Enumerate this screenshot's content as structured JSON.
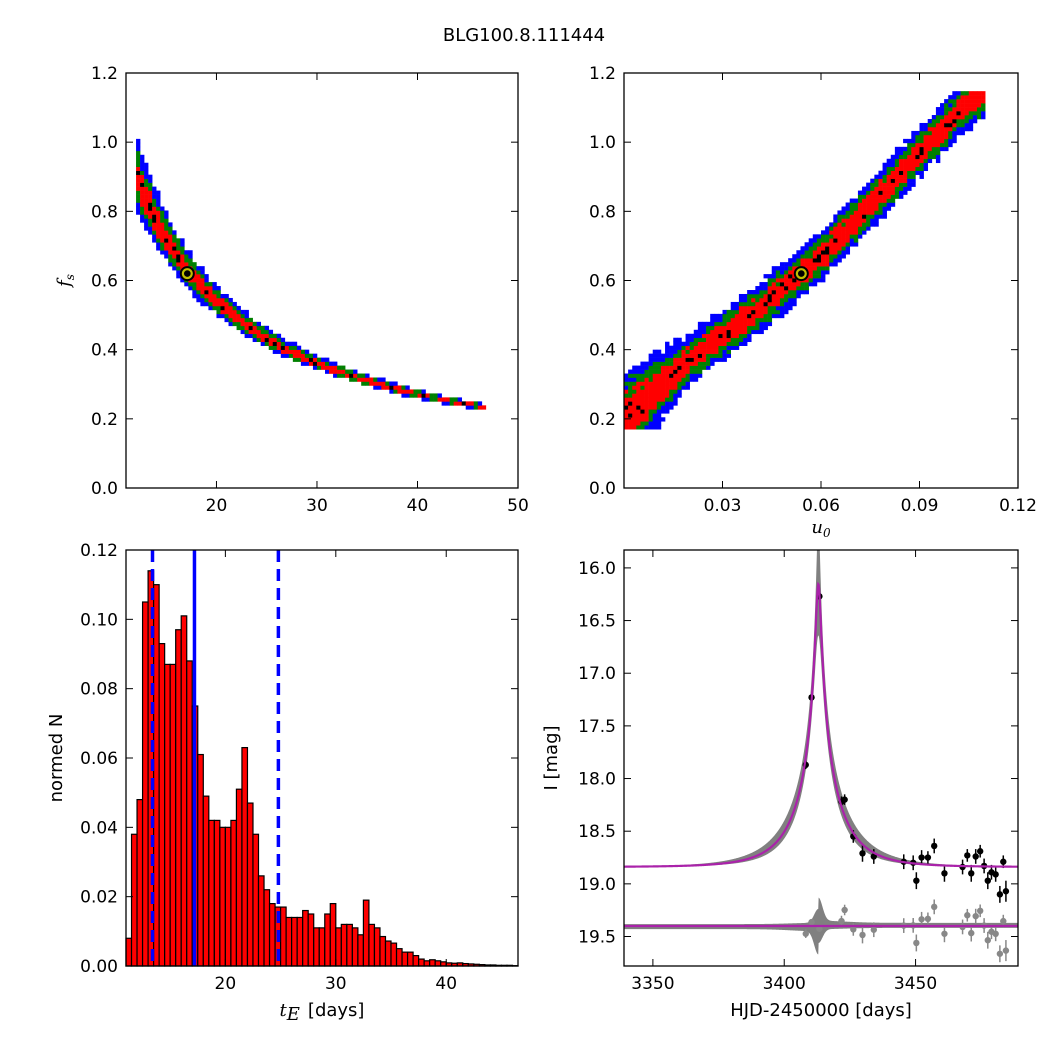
{
  "figure_title": "BLG100.8.111444",
  "colors": {
    "blue": "#0000ff",
    "green": "#008000",
    "red": "#ff0000",
    "black": "#000000",
    "marker_face": "#bfbf00",
    "magenta": "#aa22aa",
    "band_gray": "#808080",
    "resid_gray": "#888888"
  },
  "chart_data": [
    {
      "name": "fs-vs-tE-density",
      "type": "heatmap",
      "xlim": [
        11,
        50
      ],
      "ylim": [
        0.0,
        1.2
      ],
      "xticks": [
        20,
        30,
        40,
        50
      ],
      "yticks": [
        0.0,
        0.2,
        0.4,
        0.6,
        0.8,
        1.0,
        1.2
      ],
      "xlabel": "",
      "ylabel": "f_s",
      "ylabel_main": "f",
      "ylabel_sub": "s",
      "band_curve": {
        "amplitude": 10.6,
        "exponent": 1.0
      },
      "band_x_range": [
        12,
        46.5
      ],
      "levels": [
        {
          "color": "blue",
          "half_width_days": 1.6
        },
        {
          "color": "green",
          "half_width_days": 1.15
        },
        {
          "color": "red",
          "half_width_days": 0.7
        },
        {
          "color": "black",
          "half_width_days": 0.2
        }
      ],
      "best_fit": {
        "x": 17.1,
        "y": 0.62
      }
    },
    {
      "name": "fs-vs-u0-density",
      "type": "heatmap",
      "xlim": [
        0.0,
        0.12
      ],
      "ylim": [
        0.0,
        1.2
      ],
      "xticks": [
        0.03,
        0.06,
        0.09,
        0.12
      ],
      "xtick_labels": [
        "0.03",
        "0.06",
        "0.09",
        "0.12"
      ],
      "yticks": [
        0.0,
        0.2,
        0.4,
        0.6,
        0.8,
        1.0,
        1.2
      ],
      "xlabel": "u_0",
      "xlabel_main": "u",
      "xlabel_sub": "0",
      "ylabel": "",
      "band_points": [
        [
          0.0,
          0.2
        ],
        [
          0.01,
          0.285
        ],
        [
          0.02,
          0.37
        ],
        [
          0.03,
          0.44
        ],
        [
          0.04,
          0.51
        ],
        [
          0.05,
          0.59
        ],
        [
          0.06,
          0.67
        ],
        [
          0.07,
          0.77
        ],
        [
          0.08,
          0.87
        ],
        [
          0.09,
          0.97
        ],
        [
          0.1,
          1.07
        ],
        [
          0.108,
          1.13
        ]
      ],
      "levels": [
        {
          "color": "blue",
          "half_width": 0.072
        },
        {
          "color": "green",
          "half_width": 0.052
        },
        {
          "color": "red",
          "half_width": 0.032
        },
        {
          "color": "black",
          "half_width": 0.008
        }
      ],
      "best_fit": {
        "x": 0.054,
        "y": 0.62
      }
    },
    {
      "name": "tE-histogram",
      "type": "bar",
      "xlim": [
        11,
        46.5
      ],
      "ylim": [
        0.0,
        0.12
      ],
      "xticks": [
        20,
        30,
        40
      ],
      "yticks": [
        0.0,
        0.02,
        0.04,
        0.06,
        0.08,
        0.1,
        0.12
      ],
      "ytick_labels": [
        "0.00",
        "0.02",
        "0.04",
        "0.06",
        "0.08",
        "0.10",
        "0.12"
      ],
      "xlabel": "t_E [days]",
      "xlabel_main": "t",
      "xlabel_sub": "E",
      "xlabel_rest": "[days]",
      "ylabel": "normed N",
      "bin_start": 11.0,
      "bin_width": 0.5,
      "values": [
        0.008,
        0.038,
        0.048,
        0.105,
        0.114,
        0.11,
        0.093,
        0.087,
        0.087,
        0.097,
        0.101,
        0.088,
        0.075,
        0.061,
        0.049,
        0.042,
        0.042,
        0.04,
        0.04,
        0.042,
        0.051,
        0.063,
        0.047,
        0.038,
        0.026,
        0.022,
        0.018,
        0.017,
        0.017,
        0.014,
        0.014,
        0.014,
        0.016,
        0.015,
        0.011,
        0.011,
        0.015,
        0.018,
        0.011,
        0.012,
        0.012,
        0.011,
        0.009,
        0.019,
        0.012,
        0.011,
        0.0085,
        0.0072,
        0.0066,
        0.005,
        0.004,
        0.004,
        0.003,
        0.002,
        0.0015,
        0.0018,
        0.0015,
        0.0012,
        0.0009,
        0.0008,
        0.0009,
        0.0007,
        0.0006,
        0.0005,
        0.0004,
        0.0003,
        0.0003,
        0.0002,
        0.0002,
        0.0002,
        0.0001
      ],
      "vlines": [
        {
          "x": 13.4,
          "style": "dashed"
        },
        {
          "x": 17.2,
          "style": "solid"
        },
        {
          "x": 24.8,
          "style": "dashed"
        }
      ]
    },
    {
      "name": "light-curve",
      "type": "scatter",
      "xlim": [
        3339,
        3489
      ],
      "ylim": [
        19.78,
        15.83
      ],
      "y_inverted": true,
      "xticks": [
        3350,
        3400,
        3450
      ],
      "yticks": [
        16.0,
        16.5,
        17.0,
        17.5,
        18.0,
        18.5,
        19.0,
        19.5
      ],
      "ytick_labels": [
        "16.0",
        "16.5",
        "17.0",
        "17.5",
        "18.0",
        "18.5",
        "19.0",
        "19.5"
      ],
      "xlabel": "HJD-2450000 [days]",
      "ylabel": "I [mag]",
      "model": {
        "t0": 3413.0,
        "u0": 0.054,
        "tE": 17.1,
        "I_base": 18.84,
        "fs": 0.62
      },
      "residual_offset": 19.4,
      "data_points": [
        {
          "t": 3408.2,
          "mag": 17.87,
          "err": 0.04
        },
        {
          "t": 3410.4,
          "mag": 17.23,
          "err": 0.03
        },
        {
          "t": 3413.4,
          "mag": 16.27,
          "err": 0.03
        },
        {
          "t": 3421.8,
          "mag": 18.22,
          "err": 0.05
        },
        {
          "t": 3423.0,
          "mag": 18.2,
          "err": 0.05
        },
        {
          "t": 3426.3,
          "mag": 18.55,
          "err": 0.06
        },
        {
          "t": 3429.8,
          "mag": 18.71,
          "err": 0.08
        },
        {
          "t": 3434.1,
          "mag": 18.74,
          "err": 0.07
        },
        {
          "t": 3445.5,
          "mag": 18.79,
          "err": 0.07
        },
        {
          "t": 3449.1,
          "mag": 18.8,
          "err": 0.07
        },
        {
          "t": 3450.3,
          "mag": 18.97,
          "err": 0.08
        },
        {
          "t": 3452.3,
          "mag": 18.75,
          "err": 0.07
        },
        {
          "t": 3454.7,
          "mag": 18.75,
          "err": 0.06
        },
        {
          "t": 3457.1,
          "mag": 18.64,
          "err": 0.07
        },
        {
          "t": 3461.0,
          "mag": 18.9,
          "err": 0.08
        },
        {
          "t": 3467.9,
          "mag": 18.84,
          "err": 0.07
        },
        {
          "t": 3469.7,
          "mag": 18.73,
          "err": 0.06
        },
        {
          "t": 3471.2,
          "mag": 18.9,
          "err": 0.08
        },
        {
          "t": 3472.9,
          "mag": 18.74,
          "err": 0.07
        },
        {
          "t": 3474.6,
          "mag": 18.69,
          "err": 0.06
        },
        {
          "t": 3476.1,
          "mag": 18.83,
          "err": 0.07
        },
        {
          "t": 3477.5,
          "mag": 18.97,
          "err": 0.08
        },
        {
          "t": 3478.9,
          "mag": 18.89,
          "err": 0.07
        },
        {
          "t": 3480.5,
          "mag": 18.91,
          "err": 0.07
        },
        {
          "t": 3482.1,
          "mag": 19.1,
          "err": 0.08
        },
        {
          "t": 3483.4,
          "mag": 18.79,
          "err": 0.06
        },
        {
          "t": 3484.4,
          "mag": 19.07,
          "err": 0.1
        }
      ]
    }
  ]
}
